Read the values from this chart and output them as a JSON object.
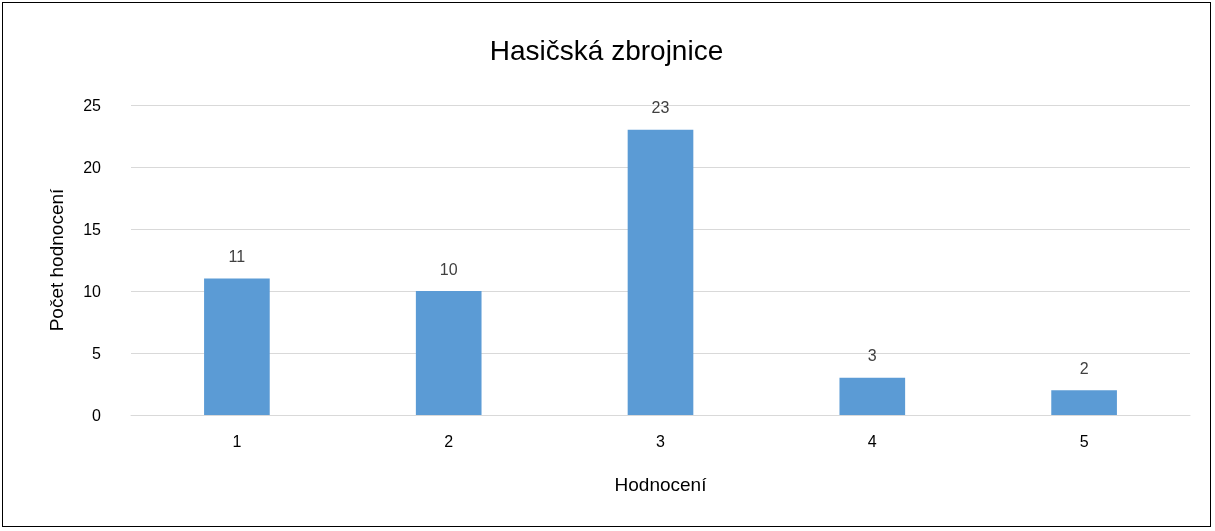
{
  "chart_data": {
    "type": "bar",
    "title": "Hasičská zbrojnice",
    "xlabel": "Hodnocení",
    "ylabel": "Počet hodnocení",
    "categories": [
      "1",
      "2",
      "3",
      "4",
      "5"
    ],
    "values": [
      11,
      10,
      23,
      3,
      2
    ],
    "color": "#5b9bd5",
    "ylim": [
      0,
      25
    ],
    "yticks": [
      0,
      5,
      10,
      15,
      20,
      25
    ],
    "grid": "y",
    "data_labels": true
  }
}
